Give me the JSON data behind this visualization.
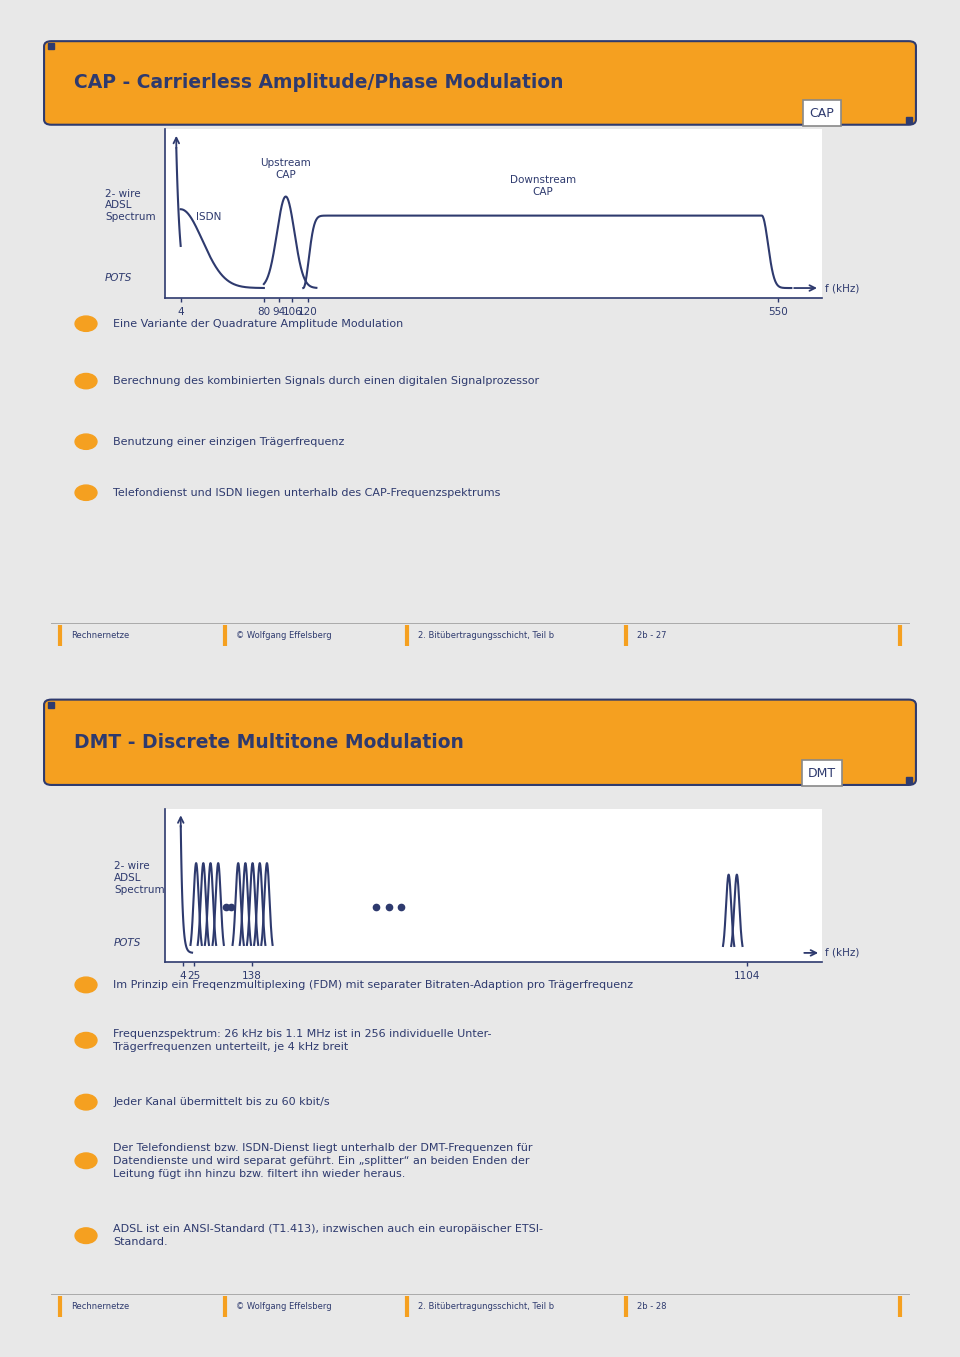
{
  "bg_color": "#e8e8e8",
  "slide_bg": "#ffffff",
  "orange_color": "#f5a020",
  "dark_blue": "#2e3a6e",
  "title1": "CAP - Carrierless Amplitude/Phase Modulation",
  "title2": "DMT - Discrete Multitone Modulation",
  "footer1_items": [
    "Rechnernetze",
    "© Wolfgang Effelsberg",
    "2. Bitübertragungsschicht, Teil b",
    "2b - 27"
  ],
  "footer2_items": [
    "Rechnernetze",
    "© Wolfgang Effelsberg",
    "2. Bitübertragungsschicht, Teil b",
    "2b - 28"
  ],
  "cap_bullets": [
    "Eine Variante der Quadrature Amplitude Modulation",
    "Berechnung des kombinierten Signals durch einen digitalen Signalprozessor",
    "Benutzung einer einzigen Trägerfrequenz",
    "Telefondienst und ISDN liegen unterhalb des CAP-Frequenzspektrums"
  ],
  "dmt_bullets": [
    "Im Prinzip ein Freqenzmultiplexing (FDM) mit separater Bitraten-Adaption pro Trägerfrequenz",
    "Frequenzspektrum: 26 kHz bis 1.1 MHz ist in 256 individuelle Unter-\nTrägerfrequenzen unterteilt, je 4 kHz breit",
    "Jeder Kanal übermittelt bis zu 60 kbit/s",
    "Der Telefondienst bzw. ISDN-Dienst liegt unterhalb der DMT-Frequenzen für\nDatendienste und wird separat geführt. Ein „splitter“ an beiden Enden der\nLeitung fügt ihn hinzu bzw. filtert ihn wieder heraus.",
    "ADSL ist ein ANSI-Standard (T1.413), inzwischen auch ein europäischer ETSI-\nStandard."
  ]
}
